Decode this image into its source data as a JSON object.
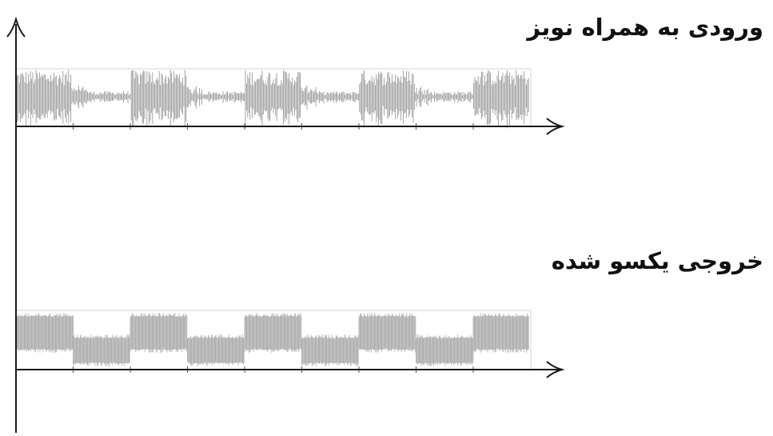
{
  "labels": {
    "input_with_noise": "ورودی به همراه نویز",
    "rectified_output": "خروجی یکسو شده"
  },
  "colors": {
    "axis": "#1a1a1a",
    "waveform": "#9a9a9a",
    "waveform_fill": "#c9c9c9",
    "frame_line": "#bdbdbd"
  }
}
